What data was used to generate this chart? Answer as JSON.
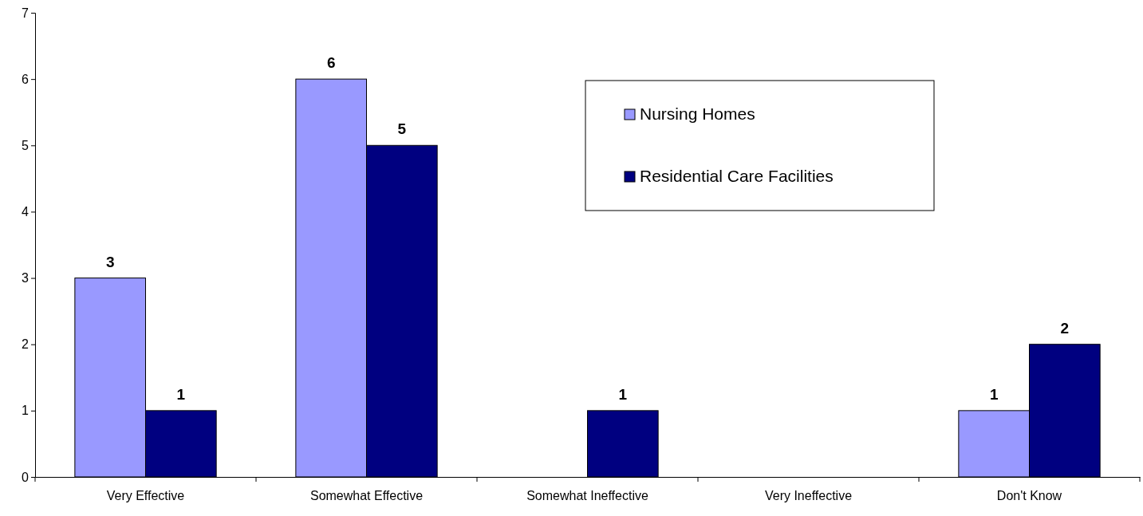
{
  "chart_data": {
    "type": "bar",
    "categories": [
      "Very Effective",
      "Somewhat Effective",
      "Somewhat Ineffective",
      "Very Ineffective",
      "Don't Know"
    ],
    "series": [
      {
        "name": "Nursing Homes",
        "color": "#9999ff",
        "values": [
          3,
          6,
          null,
          null,
          1
        ]
      },
      {
        "name": "Residential Care Facilities",
        "color": "#000080",
        "values": [
          1,
          5,
          1,
          null,
          2
        ]
      }
    ],
    "ylim": [
      0,
      7
    ],
    "yticks": [
      0,
      1,
      2,
      3,
      4,
      5,
      6,
      7
    ],
    "data_labels": true,
    "grid": false,
    "legend": "top right"
  }
}
